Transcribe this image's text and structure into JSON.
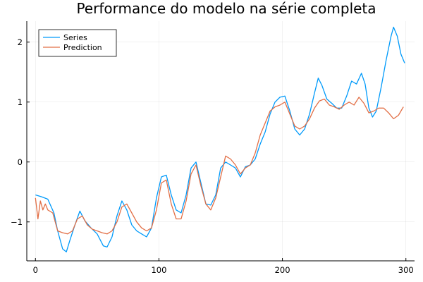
{
  "chart_data": {
    "type": "line",
    "title": "Performance do modelo na série completa",
    "xlabel": "",
    "ylabel": "",
    "xlim": [
      -7,
      307
    ],
    "ylim": [
      -1.65,
      2.35
    ],
    "xticks": [
      0,
      100,
      200,
      300
    ],
    "yticks": [
      -1,
      0,
      1,
      2
    ],
    "grid": true,
    "legend_position": "top-left",
    "series": [
      {
        "name": "Series",
        "color": "#009AFA",
        "points": [
          [
            0,
            -0.55
          ],
          [
            5,
            -0.58
          ],
          [
            10,
            -0.62
          ],
          [
            15,
            -0.85
          ],
          [
            18,
            -1.15
          ],
          [
            22,
            -1.45
          ],
          [
            25,
            -1.5
          ],
          [
            28,
            -1.3
          ],
          [
            32,
            -1.05
          ],
          [
            36,
            -0.82
          ],
          [
            40,
            -0.98
          ],
          [
            45,
            -1.1
          ],
          [
            50,
            -1.2
          ],
          [
            55,
            -1.4
          ],
          [
            58,
            -1.42
          ],
          [
            62,
            -1.25
          ],
          [
            66,
            -0.9
          ],
          [
            70,
            -0.65
          ],
          [
            74,
            -0.8
          ],
          [
            78,
            -1.05
          ],
          [
            82,
            -1.15
          ],
          [
            86,
            -1.2
          ],
          [
            90,
            -1.25
          ],
          [
            94,
            -1.1
          ],
          [
            98,
            -0.6
          ],
          [
            102,
            -0.25
          ],
          [
            106,
            -0.22
          ],
          [
            110,
            -0.55
          ],
          [
            114,
            -0.8
          ],
          [
            118,
            -0.85
          ],
          [
            122,
            -0.55
          ],
          [
            126,
            -0.1
          ],
          [
            130,
            0.0
          ],
          [
            134,
            -0.35
          ],
          [
            138,
            -0.7
          ],
          [
            142,
            -0.72
          ],
          [
            146,
            -0.55
          ],
          [
            150,
            -0.1
          ],
          [
            154,
            0.0
          ],
          [
            158,
            -0.05
          ],
          [
            162,
            -0.1
          ],
          [
            166,
            -0.25
          ],
          [
            170,
            -0.08
          ],
          [
            174,
            -0.05
          ],
          [
            178,
            0.05
          ],
          [
            182,
            0.3
          ],
          [
            186,
            0.5
          ],
          [
            190,
            0.8
          ],
          [
            194,
            1.0
          ],
          [
            198,
            1.08
          ],
          [
            202,
            1.1
          ],
          [
            206,
            0.85
          ],
          [
            210,
            0.55
          ],
          [
            214,
            0.45
          ],
          [
            218,
            0.55
          ],
          [
            222,
            0.8
          ],
          [
            226,
            1.15
          ],
          [
            229,
            1.4
          ],
          [
            232,
            1.28
          ],
          [
            236,
            1.05
          ],
          [
            240,
            0.98
          ],
          [
            244,
            0.9
          ],
          [
            248,
            0.9
          ],
          [
            252,
            1.1
          ],
          [
            256,
            1.35
          ],
          [
            260,
            1.3
          ],
          [
            264,
            1.48
          ],
          [
            267,
            1.3
          ],
          [
            270,
            0.9
          ],
          [
            273,
            0.75
          ],
          [
            276,
            0.85
          ],
          [
            280,
            1.25
          ],
          [
            284,
            1.7
          ],
          [
            288,
            2.1
          ],
          [
            290,
            2.25
          ],
          [
            293,
            2.1
          ],
          [
            296,
            1.8
          ],
          [
            299,
            1.65
          ]
        ]
      },
      {
        "name": "Prediction",
        "color": "#E26F46",
        "points": [
          [
            0,
            -0.6
          ],
          [
            2,
            -0.95
          ],
          [
            4,
            -0.65
          ],
          [
            6,
            -0.8
          ],
          [
            8,
            -0.7
          ],
          [
            10,
            -0.8
          ],
          [
            14,
            -0.85
          ],
          [
            18,
            -1.15
          ],
          [
            22,
            -1.18
          ],
          [
            26,
            -1.2
          ],
          [
            30,
            -1.15
          ],
          [
            34,
            -0.95
          ],
          [
            38,
            -0.9
          ],
          [
            42,
            -1.05
          ],
          [
            46,
            -1.12
          ],
          [
            50,
            -1.15
          ],
          [
            54,
            -1.18
          ],
          [
            58,
            -1.2
          ],
          [
            62,
            -1.15
          ],
          [
            66,
            -1.0
          ],
          [
            70,
            -0.75
          ],
          [
            74,
            -0.7
          ],
          [
            78,
            -0.85
          ],
          [
            82,
            -1.0
          ],
          [
            86,
            -1.1
          ],
          [
            90,
            -1.15
          ],
          [
            94,
            -1.1
          ],
          [
            98,
            -0.8
          ],
          [
            102,
            -0.35
          ],
          [
            106,
            -0.3
          ],
          [
            110,
            -0.7
          ],
          [
            114,
            -0.95
          ],
          [
            118,
            -0.95
          ],
          [
            122,
            -0.65
          ],
          [
            126,
            -0.2
          ],
          [
            130,
            -0.05
          ],
          [
            134,
            -0.4
          ],
          [
            138,
            -0.7
          ],
          [
            142,
            -0.8
          ],
          [
            146,
            -0.6
          ],
          [
            150,
            -0.25
          ],
          [
            154,
            0.1
          ],
          [
            158,
            0.05
          ],
          [
            162,
            -0.05
          ],
          [
            166,
            -0.2
          ],
          [
            170,
            -0.1
          ],
          [
            174,
            -0.05
          ],
          [
            178,
            0.15
          ],
          [
            182,
            0.45
          ],
          [
            186,
            0.65
          ],
          [
            190,
            0.85
          ],
          [
            194,
            0.92
          ],
          [
            198,
            0.95
          ],
          [
            202,
            1.0
          ],
          [
            206,
            0.8
          ],
          [
            210,
            0.6
          ],
          [
            214,
            0.55
          ],
          [
            218,
            0.6
          ],
          [
            222,
            0.72
          ],
          [
            226,
            0.9
          ],
          [
            230,
            1.02
          ],
          [
            234,
            1.05
          ],
          [
            238,
            0.95
          ],
          [
            242,
            0.92
          ],
          [
            246,
            0.88
          ],
          [
            250,
            0.95
          ],
          [
            254,
            1.0
          ],
          [
            258,
            0.95
          ],
          [
            262,
            1.08
          ],
          [
            266,
            0.98
          ],
          [
            270,
            0.82
          ],
          [
            274,
            0.85
          ],
          [
            278,
            0.9
          ],
          [
            282,
            0.9
          ],
          [
            286,
            0.82
          ],
          [
            290,
            0.72
          ],
          [
            294,
            0.78
          ],
          [
            298,
            0.92
          ]
        ]
      }
    ]
  }
}
